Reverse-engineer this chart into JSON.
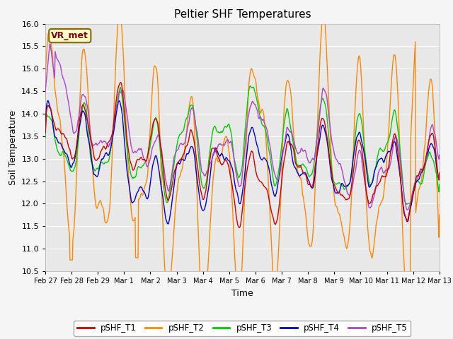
{
  "title": "Peltier SHF Temperatures",
  "xlabel": "Time",
  "ylabel": "Soil Temperature",
  "ylim": [
    10.5,
    16.0
  ],
  "yticks": [
    10.5,
    11.0,
    11.5,
    12.0,
    12.5,
    13.0,
    13.5,
    14.0,
    14.5,
    15.0,
    15.5,
    16.0
  ],
  "date_labels": [
    "Feb 27",
    "Feb 28",
    "Feb 29",
    "Mar 1",
    "Mar 2",
    "Mar 3",
    "Mar 4",
    "Mar 5",
    "Mar 6",
    "Mar 7",
    "Mar 8",
    "Mar 9",
    "Mar 10",
    "Mar 11",
    "Mar 12",
    "Mar 13"
  ],
  "line_colors": {
    "pSHF_T1": "#cc0000",
    "pSHF_T2": "#ff8800",
    "pSHF_T3": "#00cc00",
    "pSHF_T4": "#0000cc",
    "pSHF_T5": "#aa44cc"
  },
  "legend_label": "VR_met",
  "legend_bg": "#ffffcc",
  "legend_edge": "#886600",
  "bg_color": "#e8e8e8",
  "grid_color": "#ffffff",
  "line_width": 1.0,
  "n_points": 800
}
